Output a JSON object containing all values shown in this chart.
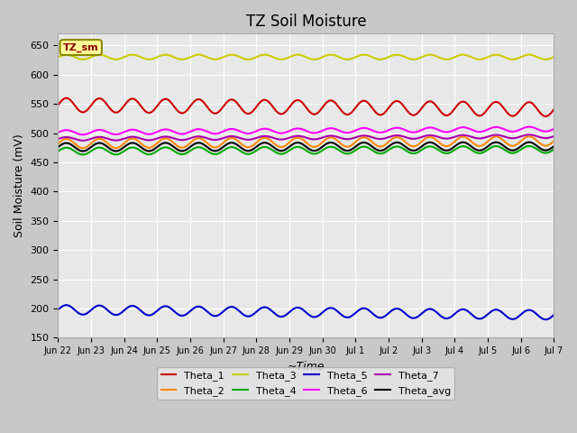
{
  "title": "TZ Soil Moisture",
  "xlabel": "~Time",
  "ylabel": "Soil Moisture (mV)",
  "ylim": [
    150,
    670
  ],
  "xlim_days": 16,
  "background_color": "#d8d8d8",
  "plot_bg_color": "#e8e8e8",
  "series": {
    "Theta_1": {
      "color": "#cc0000",
      "base": 548,
      "amp": 12,
      "period": 1.0,
      "trend": -0.5
    },
    "Theta_2": {
      "color": "#ff8800",
      "base": 482,
      "amp": 8,
      "period": 1.0,
      "trend": 0.3
    },
    "Theta_3": {
      "color": "#cccc00",
      "base": 630,
      "amp": 4,
      "period": 1.0,
      "trend": 0.0
    },
    "Theta_4": {
      "color": "#00aa00",
      "base": 469,
      "amp": 6,
      "period": 1.0,
      "trend": 0.2
    },
    "Theta_5": {
      "color": "#0000cc",
      "base": 198,
      "amp": 8,
      "period": 1.0,
      "trend": -0.6
    },
    "Theta_6": {
      "color": "#ff00ff",
      "base": 501,
      "amp": 4,
      "period": 1.0,
      "trend": 0.4
    },
    "Theta_7": {
      "color": "#aa00aa",
      "base": 490,
      "amp": 3,
      "period": 1.0,
      "trend": 0.3
    },
    "Theta_avg": {
      "color": "#000000",
      "base": 476,
      "amp": 7,
      "period": 1.0,
      "trend": 0.1
    }
  },
  "tick_labels": [
    "Jun 22",
    "Jun 23",
    "Jun 24",
    "Jun 25",
    "Jun 26",
    "Jun 27",
    "Jun 28",
    "Jun 29",
    "Jun 30",
    "Jul 1",
    "Jul 2",
    "Jul 3",
    "Jul 4",
    "Jul 5",
    "Jul 6",
    "Jul 7"
  ],
  "legend_box_label": "TZ_sm",
  "legend_box_color": "#ffff99",
  "legend_box_border": "#888800"
}
